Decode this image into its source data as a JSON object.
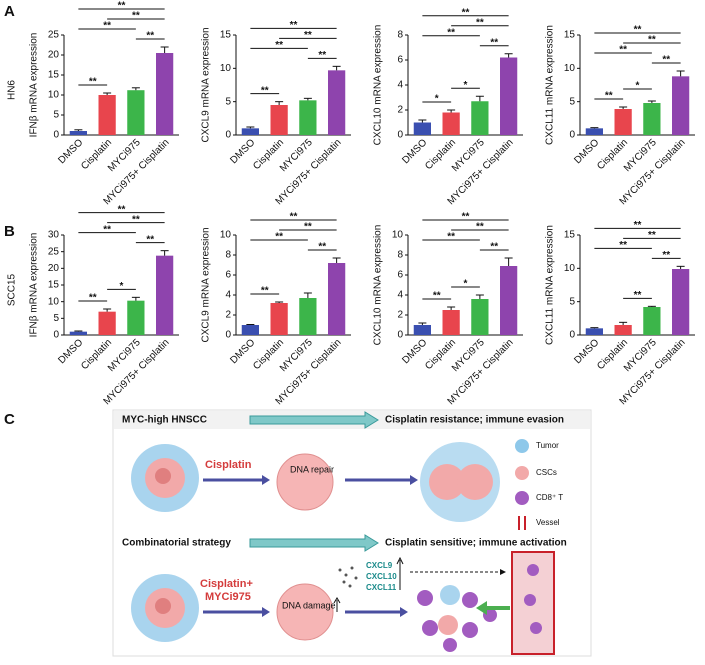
{
  "panels": [
    {
      "label": "A",
      "row_label": "HN6"
    },
    {
      "label": "B",
      "row_label": "SCC15"
    },
    {
      "label": "C"
    }
  ],
  "chart_data": [
    {
      "type": "bar",
      "y_label": "IFNβ mRNA expression",
      "categories": [
        "DMSO",
        "Cisplatin",
        "MYCi975",
        "MYCi975+ Cisplatin"
      ],
      "values": [
        1,
        10,
        11.2,
        20.5
      ],
      "errors": [
        0.3,
        0.5,
        0.6,
        1.5
      ],
      "colors": [
        "#3a4fb0",
        "#e8454d",
        "#3cb54a",
        "#8e44ad"
      ],
      "ylim": [
        0,
        25
      ],
      "yticks": [
        0,
        5,
        10,
        15,
        20,
        25
      ],
      "comparisons": [
        {
          "pair": [
            0,
            1
          ],
          "label": "**"
        },
        {
          "pair": [
            2,
            3
          ],
          "label": "**"
        },
        {
          "pair": [
            0,
            2
          ],
          "label": "**"
        },
        {
          "pair": [
            1,
            3
          ],
          "label": "**"
        },
        {
          "pair": [
            0,
            3
          ],
          "label": "**"
        }
      ]
    },
    {
      "type": "bar",
      "y_label": "CXCL9 mRNA expression",
      "categories": [
        "DMSO",
        "Cisplatin",
        "MYCi975",
        "MYCi975+ Cisplatin"
      ],
      "values": [
        1,
        4.5,
        5.2,
        9.7
      ],
      "errors": [
        0.2,
        0.5,
        0.3,
        0.6
      ],
      "colors": [
        "#3a4fb0",
        "#e8454d",
        "#3cb54a",
        "#8e44ad"
      ],
      "ylim": [
        0,
        15
      ],
      "yticks": [
        0,
        5,
        10,
        15
      ],
      "comparisons": [
        {
          "pair": [
            0,
            1
          ],
          "label": "**"
        },
        {
          "pair": [
            2,
            3
          ],
          "label": "**"
        },
        {
          "pair": [
            0,
            2
          ],
          "label": "**"
        },
        {
          "pair": [
            1,
            3
          ],
          "label": "**"
        },
        {
          "pair": [
            0,
            3
          ],
          "label": "**"
        }
      ]
    },
    {
      "type": "bar",
      "y_label": "CXCL10 mRNA expression",
      "categories": [
        "DMSO",
        "Cisplatin",
        "MYCi975",
        "MYCi975+ Cisplatin"
      ],
      "values": [
        1,
        1.8,
        2.7,
        6.2
      ],
      "errors": [
        0.2,
        0.2,
        0.4,
        0.3
      ],
      "colors": [
        "#3a4fb0",
        "#e8454d",
        "#3cb54a",
        "#8e44ad"
      ],
      "ylim": [
        0,
        8
      ],
      "yticks": [
        0,
        2,
        4,
        6,
        8
      ],
      "comparisons": [
        {
          "pair": [
            0,
            1
          ],
          "label": "*"
        },
        {
          "pair": [
            1,
            2
          ],
          "label": "*"
        },
        {
          "pair": [
            2,
            3
          ],
          "label": "**"
        },
        {
          "pair": [
            0,
            2
          ],
          "label": "**"
        },
        {
          "pair": [
            1,
            3
          ],
          "label": "**"
        },
        {
          "pair": [
            0,
            3
          ],
          "label": "**"
        }
      ]
    },
    {
      "type": "bar",
      "y_label": "CXCL11 mRNA expression",
      "categories": [
        "DMSO",
        "Cisplatin",
        "MYCi975",
        "MYCi975+ Cisplatin"
      ],
      "values": [
        1,
        3.9,
        4.8,
        8.8
      ],
      "errors": [
        0.1,
        0.3,
        0.3,
        0.8
      ],
      "colors": [
        "#3a4fb0",
        "#e8454d",
        "#3cb54a",
        "#8e44ad"
      ],
      "ylim": [
        0,
        15
      ],
      "yticks": [
        0,
        5,
        10,
        15
      ],
      "comparisons": [
        {
          "pair": [
            0,
            1
          ],
          "label": "**"
        },
        {
          "pair": [
            1,
            2
          ],
          "label": "*"
        },
        {
          "pair": [
            2,
            3
          ],
          "label": "**"
        },
        {
          "pair": [
            0,
            2
          ],
          "label": "**"
        },
        {
          "pair": [
            1,
            3
          ],
          "label": "**"
        },
        {
          "pair": [
            0,
            3
          ],
          "label": "**"
        }
      ]
    },
    {
      "type": "bar",
      "y_label": "IFNβ mRNA expression",
      "categories": [
        "DMSO",
        "Cisplatin",
        "MYCi975",
        "MYCi975+ Cisplatin"
      ],
      "values": [
        1,
        7,
        10.3,
        23.8
      ],
      "errors": [
        0.2,
        0.8,
        1.0,
        1.5
      ],
      "colors": [
        "#3a4fb0",
        "#e8454d",
        "#3cb54a",
        "#8e44ad"
      ],
      "ylim": [
        0,
        30
      ],
      "yticks": [
        0,
        5,
        10,
        15,
        20,
        25,
        30
      ],
      "comparisons": [
        {
          "pair": [
            0,
            1
          ],
          "label": "**"
        },
        {
          "pair": [
            1,
            2
          ],
          "label": "*"
        },
        {
          "pair": [
            2,
            3
          ],
          "label": "**"
        },
        {
          "pair": [
            0,
            2
          ],
          "label": "**"
        },
        {
          "pair": [
            1,
            3
          ],
          "label": "**"
        },
        {
          "pair": [
            0,
            3
          ],
          "label": "**"
        }
      ]
    },
    {
      "type": "bar",
      "y_label": "CXCL9 mRNA expression",
      "categories": [
        "DMSO",
        "Cisplatin",
        "MYCi975",
        "MYCi975+ Cisplatin"
      ],
      "values": [
        1,
        3.2,
        3.7,
        7.2
      ],
      "errors": [
        0.05,
        0.1,
        0.5,
        0.5
      ],
      "colors": [
        "#3a4fb0",
        "#e8454d",
        "#3cb54a",
        "#8e44ad"
      ],
      "ylim": [
        0,
        10
      ],
      "yticks": [
        0,
        2,
        4,
        6,
        8,
        10
      ],
      "comparisons": [
        {
          "pair": [
            0,
            1
          ],
          "label": "**"
        },
        {
          "pair": [
            2,
            3
          ],
          "label": "**"
        },
        {
          "pair": [
            0,
            2
          ],
          "label": "**"
        },
        {
          "pair": [
            1,
            3
          ],
          "label": "**"
        },
        {
          "pair": [
            0,
            3
          ],
          "label": "**"
        }
      ]
    },
    {
      "type": "bar",
      "y_label": "CXCL10 mRNA expression",
      "categories": [
        "DMSO",
        "Cisplatin",
        "MYCi975",
        "MYCi975+ Cisplatin"
      ],
      "values": [
        1,
        2.5,
        3.6,
        6.9
      ],
      "errors": [
        0.2,
        0.3,
        0.4,
        0.8
      ],
      "colors": [
        "#3a4fb0",
        "#e8454d",
        "#3cb54a",
        "#8e44ad"
      ],
      "ylim": [
        0,
        10
      ],
      "yticks": [
        0,
        2,
        4,
        6,
        8,
        10
      ],
      "comparisons": [
        {
          "pair": [
            0,
            1
          ],
          "label": "**"
        },
        {
          "pair": [
            1,
            2
          ],
          "label": "*"
        },
        {
          "pair": [
            2,
            3
          ],
          "label": "**"
        },
        {
          "pair": [
            0,
            2
          ],
          "label": "**"
        },
        {
          "pair": [
            1,
            3
          ],
          "label": "**"
        },
        {
          "pair": [
            0,
            3
          ],
          "label": "**"
        }
      ]
    },
    {
      "type": "bar",
      "y_label": "CXCL11 mRNA expression",
      "categories": [
        "DMSO",
        "Cisplatin",
        "MYCi975",
        "MYCi975+ Cisplatin"
      ],
      "values": [
        1,
        1.5,
        4.2,
        9.9
      ],
      "errors": [
        0.1,
        0.4,
        0.1,
        0.4
      ],
      "colors": [
        "#3a4fb0",
        "#e8454d",
        "#3cb54a",
        "#8e44ad"
      ],
      "ylim": [
        0,
        15
      ],
      "yticks": [
        0,
        5,
        10,
        15
      ],
      "comparisons": [
        {
          "pair": [
            1,
            2
          ],
          "label": "**"
        },
        {
          "pair": [
            2,
            3
          ],
          "label": "**"
        },
        {
          "pair": [
            0,
            2
          ],
          "label": "**"
        },
        {
          "pair": [
            1,
            3
          ],
          "label": "**"
        },
        {
          "pair": [
            0,
            3
          ],
          "label": "**"
        }
      ]
    }
  ],
  "diagram": {
    "row1": {
      "title": "MYC-high HNSCC",
      "outcome": "Cisplatin resistance; immune evasion",
      "treatment": "Cisplatin",
      "process": "DNA repair"
    },
    "row2": {
      "title": "Combinatorial strategy",
      "outcome": "Cisplatin sensitive; immune activation",
      "treatment": [
        "Cisplatin+",
        "MYCi975"
      ],
      "process": "DNA damage",
      "chemokines": [
        "CXCL9",
        "CXCL10",
        "CXCL11"
      ]
    },
    "legend": [
      "Tumor",
      "CSCs",
      "CD8⁺ T",
      "Vessel"
    ]
  }
}
